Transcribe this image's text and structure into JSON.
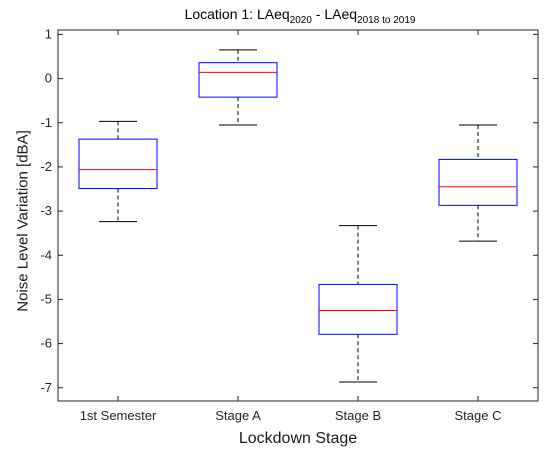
{
  "chart_data": {
    "type": "box",
    "title": {
      "prefix": "Location 1: LAeq",
      "sub1": "2020",
      "middle": " - LAeq",
      "sub2": "2018 to 2019"
    },
    "xlabel": "Lockdown Stage",
    "ylabel": "Noise Level Variation [dBA]",
    "ylim": [
      -7.3,
      1.1
    ],
    "yticks": [
      1,
      0,
      -1,
      -2,
      -3,
      -4,
      -5,
      -6,
      -7
    ],
    "ytick_labels": [
      "1",
      "0",
      "-1",
      "-2",
      "-3",
      "-4",
      "-5",
      "-6",
      "-7"
    ],
    "categories": [
      "1st Semester",
      "Stage A",
      "Stage B",
      "Stage C"
    ],
    "boxes": [
      {
        "whisker_low": -3.24,
        "q1": -2.49,
        "median": -2.06,
        "q3": -1.37,
        "whisker_high": -0.97
      },
      {
        "whisker_low": -1.05,
        "q1": -0.42,
        "median": 0.14,
        "q3": 0.36,
        "whisker_high": 0.65
      },
      {
        "whisker_low": -6.87,
        "q1": -5.79,
        "median": -5.25,
        "q3": -4.66,
        "whisker_high": -3.33
      },
      {
        "whisker_low": -3.68,
        "q1": -2.87,
        "median": -2.45,
        "q3": -1.83,
        "whisker_high": -1.05
      }
    ],
    "colors": {
      "box": "#0000ff",
      "median": "#ff0000",
      "whisker": "#000000",
      "axis": "#262626"
    },
    "grid": false,
    "legend": "none"
  }
}
